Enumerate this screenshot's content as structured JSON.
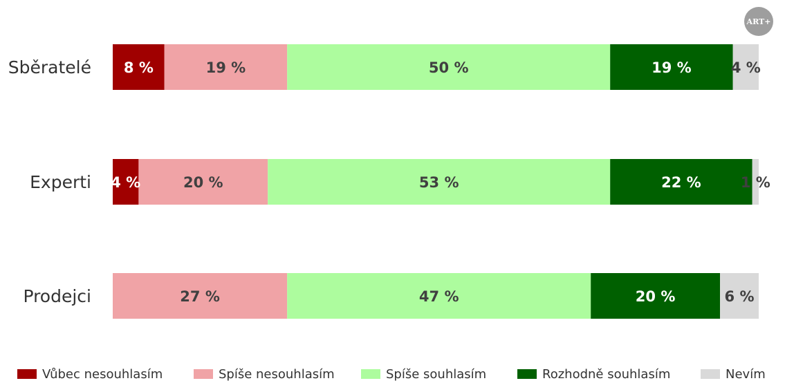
{
  "logo": {
    "text": "ART+",
    "color": "#9e9e9e"
  },
  "chart_data": {
    "type": "bar",
    "orientation": "horizontal",
    "stacked": true,
    "normalized": "percent",
    "categories": [
      "Sběratelé",
      "Experti",
      "Prodejci"
    ],
    "series": [
      {
        "name": "Vůbec nesouhlasím",
        "color": "#a00000",
        "label_color": "#ffffff",
        "values": [
          8,
          4,
          0
        ],
        "labels": [
          "8 %",
          "4 %",
          ""
        ]
      },
      {
        "name": "Spíše nesouhlasím",
        "color": "#f0a3a6",
        "label_color": "#404040",
        "values": [
          19,
          20,
          27
        ],
        "labels": [
          "19 %",
          "20 %",
          "27 %"
        ]
      },
      {
        "name": "Spíše souhlasím",
        "color": "#adfc9e",
        "label_color": "#404040",
        "values": [
          50,
          53,
          47
        ],
        "labels": [
          "50 %",
          "53 %",
          "47 %"
        ]
      },
      {
        "name": "Rozhodně souhlasím",
        "color": "#006000",
        "label_color": "#ffffff",
        "values": [
          19,
          22,
          20
        ],
        "labels": [
          "19 %",
          "22 %",
          "20 %"
        ]
      },
      {
        "name": "Nevím",
        "color": "#d9d9d9",
        "label_color": "#404040",
        "values": [
          4,
          1,
          6
        ],
        "labels": [
          "4 %",
          "1 %",
          "6 %"
        ]
      }
    ],
    "legend_position": "bottom",
    "grid": false
  }
}
